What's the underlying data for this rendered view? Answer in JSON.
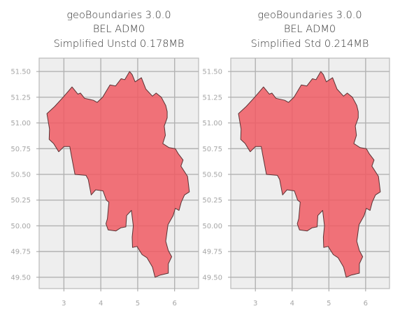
{
  "chart_data": [
    {
      "type": "map",
      "title": [
        "geoBoundaries 3.0.0",
        "BEL ADM0",
        "Simplified Unstd 0.178MB"
      ],
      "xlabel": "",
      "ylabel": "",
      "xlim": [
        2.33,
        6.65
      ],
      "ylim": [
        49.39,
        51.63
      ],
      "xticks": [
        3,
        4,
        5,
        6
      ],
      "xtick_labels": [
        "3",
        "4",
        "5",
        "6"
      ],
      "yticks": [
        49.5,
        49.75,
        50.0,
        50.25,
        50.5,
        50.75,
        51.0,
        51.25,
        51.5
      ],
      "ytick_labels": [
        "49.50",
        "49.75",
        "50.00",
        "50.25",
        "50.50",
        "50.75",
        "51.00",
        "51.25",
        "51.50"
      ],
      "grid": true,
      "fill_color": "#f05b63",
      "edge_color": "#5a3335",
      "background_color": "#eeeeee",
      "boundary_lonlat": [
        [
          2.54,
          51.09
        ],
        [
          2.75,
          51.16
        ],
        [
          2.98,
          51.25
        ],
        [
          3.22,
          51.35
        ],
        [
          3.38,
          51.28
        ],
        [
          3.45,
          51.29
        ],
        [
          3.56,
          51.24
        ],
        [
          3.8,
          51.22
        ],
        [
          3.9,
          51.2
        ],
        [
          4.05,
          51.25
        ],
        [
          4.25,
          51.37
        ],
        [
          4.4,
          51.36
        ],
        [
          4.55,
          51.43
        ],
        [
          4.65,
          51.42
        ],
        [
          4.78,
          51.5
        ],
        [
          4.85,
          51.47
        ],
        [
          4.93,
          51.4
        ],
        [
          5.1,
          51.44
        ],
        [
          5.22,
          51.33
        ],
        [
          5.4,
          51.26
        ],
        [
          5.5,
          51.29
        ],
        [
          5.64,
          51.25
        ],
        [
          5.76,
          51.17
        ],
        [
          5.8,
          51.11
        ],
        [
          5.8,
          51.05
        ],
        [
          5.72,
          50.97
        ],
        [
          5.75,
          50.88
        ],
        [
          5.68,
          50.8
        ],
        [
          5.85,
          50.76
        ],
        [
          6.02,
          50.75
        ],
        [
          6.1,
          50.7
        ],
        [
          6.23,
          50.64
        ],
        [
          6.17,
          50.58
        ],
        [
          6.35,
          50.48
        ],
        [
          6.4,
          50.33
        ],
        [
          6.27,
          50.3
        ],
        [
          6.18,
          50.23
        ],
        [
          6.12,
          50.15
        ],
        [
          6.02,
          50.17
        ],
        [
          5.96,
          50.1
        ],
        [
          5.82,
          50.01
        ],
        [
          5.76,
          49.85
        ],
        [
          5.83,
          49.76
        ],
        [
          5.92,
          49.7
        ],
        [
          5.83,
          49.63
        ],
        [
          5.83,
          49.54
        ],
        [
          5.6,
          49.52
        ],
        [
          5.47,
          49.5
        ],
        [
          5.4,
          49.6
        ],
        [
          5.25,
          49.69
        ],
        [
          5.12,
          49.72
        ],
        [
          4.98,
          49.8
        ],
        [
          4.86,
          49.79
        ],
        [
          4.85,
          49.89
        ],
        [
          4.88,
          50.0
        ],
        [
          4.83,
          50.15
        ],
        [
          4.7,
          50.1
        ],
        [
          4.68,
          49.99
        ],
        [
          4.54,
          49.98
        ],
        [
          4.41,
          49.95
        ],
        [
          4.2,
          49.96
        ],
        [
          4.14,
          50.02
        ],
        [
          4.18,
          50.07
        ],
        [
          4.22,
          50.23
        ],
        [
          4.15,
          50.25
        ],
        [
          4.06,
          50.34
        ],
        [
          3.86,
          50.35
        ],
        [
          3.74,
          50.3
        ],
        [
          3.66,
          50.45
        ],
        [
          3.6,
          50.49
        ],
        [
          3.3,
          50.5
        ],
        [
          3.2,
          50.69
        ],
        [
          3.16,
          50.77
        ],
        [
          3.0,
          50.77
        ],
        [
          2.86,
          50.72
        ],
        [
          2.72,
          50.8
        ],
        [
          2.6,
          50.84
        ],
        [
          2.61,
          50.94
        ],
        [
          2.54,
          51.09
        ]
      ]
    },
    {
      "type": "map",
      "title": [
        "geoBoundaries 3.0.0",
        "BEL ADM0",
        "Simplified Std 0.214MB"
      ],
      "xlabel": "",
      "ylabel": "",
      "xlim": [
        2.33,
        6.65
      ],
      "ylim": [
        49.39,
        51.63
      ],
      "xticks": [
        3,
        4,
        5,
        6
      ],
      "xtick_labels": [
        "3",
        "4",
        "5",
        "6"
      ],
      "yticks": [
        49.5,
        49.75,
        50.0,
        50.25,
        50.5,
        50.75,
        51.0,
        51.25,
        51.5
      ],
      "ytick_labels": [
        "49.50",
        "49.75",
        "50.00",
        "50.25",
        "50.50",
        "50.75",
        "51.00",
        "51.25",
        "51.50"
      ],
      "grid": true,
      "fill_color": "#f05b63",
      "edge_color": "#5a3335",
      "background_color": "#eeeeee",
      "boundary_lonlat": [
        [
          2.54,
          51.09
        ],
        [
          2.75,
          51.16
        ],
        [
          2.98,
          51.25
        ],
        [
          3.22,
          51.35
        ],
        [
          3.38,
          51.28
        ],
        [
          3.45,
          51.29
        ],
        [
          3.56,
          51.24
        ],
        [
          3.8,
          51.22
        ],
        [
          3.9,
          51.2
        ],
        [
          4.05,
          51.25
        ],
        [
          4.25,
          51.37
        ],
        [
          4.4,
          51.36
        ],
        [
          4.55,
          51.43
        ],
        [
          4.65,
          51.42
        ],
        [
          4.78,
          51.5
        ],
        [
          4.85,
          51.47
        ],
        [
          4.93,
          51.4
        ],
        [
          5.1,
          51.44
        ],
        [
          5.22,
          51.33
        ],
        [
          5.4,
          51.26
        ],
        [
          5.5,
          51.29
        ],
        [
          5.64,
          51.25
        ],
        [
          5.76,
          51.17
        ],
        [
          5.8,
          51.11
        ],
        [
          5.8,
          51.05
        ],
        [
          5.72,
          50.97
        ],
        [
          5.75,
          50.88
        ],
        [
          5.68,
          50.8
        ],
        [
          5.85,
          50.76
        ],
        [
          6.02,
          50.75
        ],
        [
          6.1,
          50.7
        ],
        [
          6.23,
          50.64
        ],
        [
          6.17,
          50.58
        ],
        [
          6.35,
          50.48
        ],
        [
          6.4,
          50.33
        ],
        [
          6.27,
          50.3
        ],
        [
          6.18,
          50.23
        ],
        [
          6.12,
          50.15
        ],
        [
          6.02,
          50.17
        ],
        [
          5.96,
          50.1
        ],
        [
          5.82,
          50.01
        ],
        [
          5.76,
          49.85
        ],
        [
          5.83,
          49.76
        ],
        [
          5.92,
          49.7
        ],
        [
          5.83,
          49.63
        ],
        [
          5.83,
          49.54
        ],
        [
          5.6,
          49.52
        ],
        [
          5.47,
          49.5
        ],
        [
          5.4,
          49.6
        ],
        [
          5.25,
          49.69
        ],
        [
          5.12,
          49.72
        ],
        [
          4.98,
          49.8
        ],
        [
          4.86,
          49.79
        ],
        [
          4.85,
          49.89
        ],
        [
          4.88,
          50.0
        ],
        [
          4.83,
          50.15
        ],
        [
          4.7,
          50.1
        ],
        [
          4.68,
          49.99
        ],
        [
          4.54,
          49.98
        ],
        [
          4.41,
          49.95
        ],
        [
          4.2,
          49.96
        ],
        [
          4.14,
          50.02
        ],
        [
          4.18,
          50.07
        ],
        [
          4.22,
          50.23
        ],
        [
          4.15,
          50.25
        ],
        [
          4.06,
          50.34
        ],
        [
          3.86,
          50.35
        ],
        [
          3.74,
          50.3
        ],
        [
          3.66,
          50.45
        ],
        [
          3.6,
          50.49
        ],
        [
          3.3,
          50.5
        ],
        [
          3.2,
          50.69
        ],
        [
          3.16,
          50.77
        ],
        [
          3.0,
          50.77
        ],
        [
          2.86,
          50.72
        ],
        [
          2.72,
          50.8
        ],
        [
          2.6,
          50.84
        ],
        [
          2.61,
          50.94
        ],
        [
          2.54,
          51.09
        ]
      ]
    }
  ]
}
